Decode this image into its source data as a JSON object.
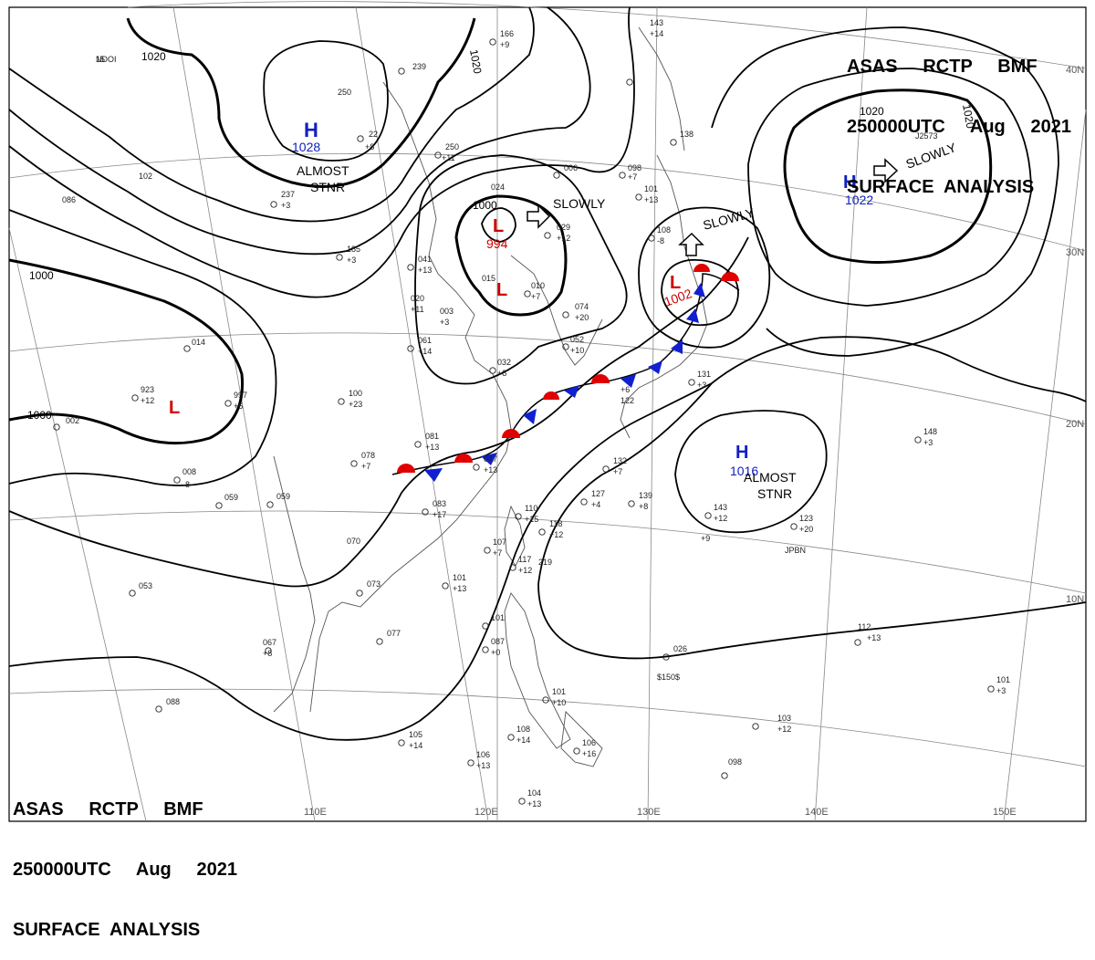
{
  "title": {
    "line1": "ASAS     RCTP     BMF",
    "line2": "250000UTC     Aug     2021",
    "line3": "SURFACE  ANALYSIS"
  },
  "colors": {
    "high": "#1020c0",
    "low": "#d00000",
    "warm_front": "#e00000",
    "cold_front": "#1020d0",
    "isobar": "#000000",
    "geo": "#666666"
  },
  "longitude_labels": [
    "110E",
    "120E",
    "130E",
    "140E",
    "150E"
  ],
  "latitude_labels": [
    "40N",
    "30N",
    "20N",
    "10N"
  ],
  "isobar_labels": [
    {
      "text": "1020"
    },
    {
      "text": "1020"
    },
    {
      "text": "1020"
    },
    {
      "text": "1020"
    },
    {
      "text": "1000"
    },
    {
      "text": "1000"
    },
    {
      "text": "1000"
    }
  ],
  "pressure_systems": [
    {
      "letter": "H",
      "value": "1028",
      "kind": "high"
    },
    {
      "letter": "H",
      "value": "1022",
      "kind": "high"
    },
    {
      "letter": "H",
      "value": "1016",
      "kind": "high"
    },
    {
      "letter": "L",
      "value": "994",
      "kind": "low"
    },
    {
      "letter": "L",
      "value": "",
      "kind": "low"
    },
    {
      "letter": "L",
      "value": "1002",
      "kind": "low"
    },
    {
      "letter": "L",
      "value": "",
      "kind": "low"
    }
  ],
  "motion_labels": [
    {
      "text": "ALMOST"
    },
    {
      "text": "STNR"
    },
    {
      "text": "SLOWLY"
    },
    {
      "text": "SLOWLY"
    },
    {
      "text": "SLOWLY"
    },
    {
      "text": "ALMOST"
    },
    {
      "text": "STNR"
    }
  ],
  "station_obs": [
    {
      "t": "15"
    },
    {
      "t": "250"
    },
    {
      "t": "239"
    },
    {
      "t": "22"
    },
    {
      "t": "+8"
    },
    {
      "t": "237"
    },
    {
      "t": "+3"
    },
    {
      "t": "102"
    },
    {
      "t": "086"
    },
    {
      "t": "185"
    },
    {
      "t": "+3"
    },
    {
      "t": "166"
    },
    {
      "t": "+9"
    },
    {
      "t": "250"
    },
    {
      "t": "+11"
    },
    {
      "t": "006"
    },
    {
      "t": "024"
    },
    {
      "t": "029"
    },
    {
      "t": "+12"
    },
    {
      "t": "041"
    },
    {
      "t": "+13"
    },
    {
      "t": "020"
    },
    {
      "t": "+11"
    },
    {
      "t": "003"
    },
    {
      "t": "+3"
    },
    {
      "t": "015"
    },
    {
      "t": "010"
    },
    {
      "t": "+7"
    },
    {
      "t": "074"
    },
    {
      "t": "+20"
    },
    {
      "t": "052"
    },
    {
      "t": "+10"
    },
    {
      "t": "061"
    },
    {
      "t": "+14"
    },
    {
      "t": "032"
    },
    {
      "t": "+8"
    },
    {
      "t": "014"
    },
    {
      "t": "923"
    },
    {
      "t": "+12"
    },
    {
      "t": "997"
    },
    {
      "t": "+6"
    },
    {
      "t": "002"
    },
    {
      "t": "100"
    },
    {
      "t": "+23"
    },
    {
      "t": "008"
    },
    {
      "t": "-8"
    },
    {
      "t": "081"
    },
    {
      "t": "+13"
    },
    {
      "t": "078"
    },
    {
      "t": "+7"
    },
    {
      "t": "047"
    },
    {
      "t": "+13"
    },
    {
      "t": "059"
    },
    {
      "t": "083"
    },
    {
      "t": "+17"
    },
    {
      "t": "110"
    },
    {
      "t": "+15"
    },
    {
      "t": "107"
    },
    {
      "t": "+7"
    },
    {
      "t": "117"
    },
    {
      "t": "+12"
    },
    {
      "t": "118"
    },
    {
      "t": "+12"
    },
    {
      "t": "127"
    },
    {
      "t": "+4"
    },
    {
      "t": "132"
    },
    {
      "t": "+7"
    },
    {
      "t": "139"
    },
    {
      "t": "+8"
    },
    {
      "t": "070"
    },
    {
      "t": "073"
    },
    {
      "t": "101"
    },
    {
      "t": "+13"
    },
    {
      "t": "053"
    },
    {
      "t": "067"
    },
    {
      "t": "+8"
    },
    {
      "t": "077"
    },
    {
      "t": "101"
    },
    {
      "t": "087"
    },
    {
      "t": "+0"
    },
    {
      "t": "101"
    },
    {
      "t": "+10"
    },
    {
      "t": "088"
    },
    {
      "t": "105"
    },
    {
      "t": "+14"
    },
    {
      "t": "106"
    },
    {
      "t": "+13"
    },
    {
      "t": "108"
    },
    {
      "t": "+14"
    },
    {
      "t": "106"
    },
    {
      "t": "+16"
    },
    {
      "t": "104"
    },
    {
      "t": "+13"
    },
    {
      "t": "098"
    },
    {
      "t": "026"
    },
    {
      "t": "$150$"
    },
    {
      "t": "143"
    },
    {
      "t": "+12"
    },
    {
      "t": "123"
    },
    {
      "t": "+20"
    },
    {
      "t": "131"
    },
    {
      "t": "+3"
    },
    {
      "t": "148"
    },
    {
      "t": "+3"
    },
    {
      "t": "112"
    },
    {
      "t": "+13"
    },
    {
      "t": "101"
    },
    {
      "t": "+3"
    },
    {
      "t": "103"
    },
    {
      "t": "+12"
    },
    {
      "t": "098"
    },
    {
      "t": "+7"
    },
    {
      "t": "101"
    },
    {
      "t": "+13"
    },
    {
      "t": "108"
    },
    {
      "t": "-8"
    },
    {
      "t": "138"
    },
    {
      "t": "143"
    },
    {
      "t": "+14"
    },
    {
      "t": "059"
    },
    {
      "t": "+6"
    },
    {
      "t": "122"
    },
    {
      "t": "+9"
    },
    {
      "t": "JPBN"
    },
    {
      "t": "J2573"
    },
    {
      "t": "219"
    },
    {
      "t": "NDOI"
    }
  ]
}
